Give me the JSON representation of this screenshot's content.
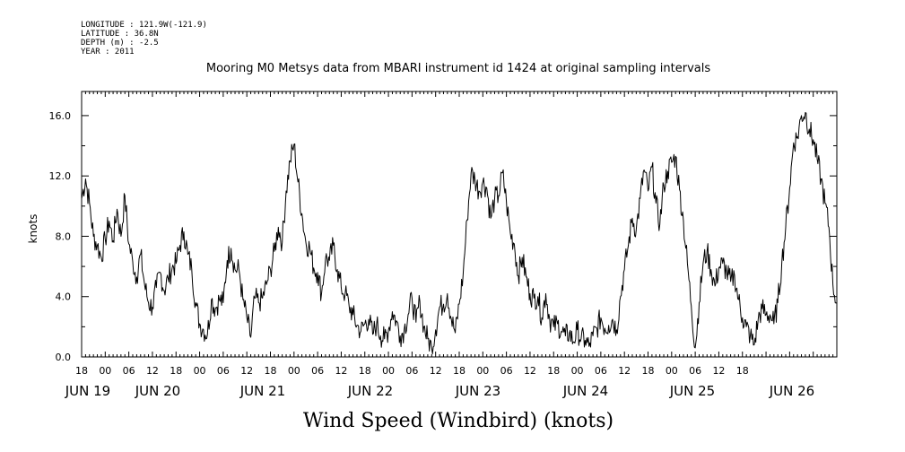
{
  "header": {
    "meta_lines": [
      "LONGITUDE : 121.9W(-121.9)",
      "LATITUDE : 36.8N",
      "DEPTH (m) : -2.5",
      "YEAR : 2011"
    ],
    "title": "Mooring M0 Metsys data from MBARI instrument id 1424 at original sampling intervals"
  },
  "chart_data": {
    "type": "line",
    "ylabel": "knots",
    "xlabel": "Wind Speed (Windbird) (knots)",
    "ylim": [
      0,
      17.6
    ],
    "yticks": [
      "0.0",
      "4.0",
      "8.0",
      "12.0",
      "16.0"
    ],
    "ytick_values": [
      0,
      4,
      8,
      12,
      16
    ],
    "xlim_hours": [
      18,
      210
    ],
    "hour_ticks": [
      "18",
      "00",
      "06",
      "12",
      "18",
      "00",
      "06",
      "12",
      "18",
      "00",
      "06",
      "12",
      "18",
      "00",
      "06",
      "12",
      "18",
      "00",
      "06",
      "12",
      "18",
      "00",
      "06",
      "12",
      "18",
      "00",
      "06",
      "12",
      "18"
    ],
    "day_labels": [
      "JUN 19",
      "JUN 20",
      "JUN 21",
      "JUN 22",
      "JUN 23",
      "JUN 24",
      "JUN 25",
      "JUN 26"
    ],
    "series": [
      {
        "values": [
          [
            18,
            10.5
          ],
          [
            19,
            11.8
          ],
          [
            20,
            10.2
          ],
          [
            21,
            8
          ],
          [
            22,
            7.4
          ],
          [
            23,
            6.6
          ],
          [
            24,
            7.8
          ],
          [
            25,
            9
          ],
          [
            26,
            7.7
          ],
          [
            27,
            9.8
          ],
          [
            28,
            8
          ],
          [
            29,
            10.7
          ],
          [
            30,
            7.5
          ],
          [
            31,
            6.3
          ],
          [
            32,
            5.3
          ],
          [
            33,
            6.8
          ],
          [
            34,
            4.8
          ],
          [
            35,
            3.6
          ],
          [
            36,
            3.3
          ],
          [
            37,
            4.6
          ],
          [
            38,
            5.6
          ],
          [
            39,
            4.4
          ],
          [
            40,
            5.2
          ],
          [
            41,
            5.9
          ],
          [
            42,
            6.2
          ],
          [
            43,
            7.4
          ],
          [
            44,
            8.3
          ],
          [
            45,
            6.8
          ],
          [
            46,
            5.8
          ],
          [
            47,
            3.6
          ],
          [
            48,
            2.2
          ],
          [
            49,
            1.8
          ],
          [
            50,
            1.5
          ],
          [
            51,
            3.8
          ],
          [
            52,
            3.2
          ],
          [
            53,
            3.8
          ],
          [
            54,
            3.6
          ],
          [
            55,
            6.4
          ],
          [
            56,
            7.2
          ],
          [
            57,
            5.8
          ],
          [
            58,
            5.8
          ],
          [
            59,
            3.8
          ],
          [
            60,
            2.6
          ],
          [
            61,
            1.3
          ],
          [
            62,
            3.9
          ],
          [
            63,
            3.6
          ],
          [
            64,
            3.9
          ],
          [
            65,
            4.8
          ],
          [
            66,
            5.8
          ],
          [
            67,
            7
          ],
          [
            68,
            8.6
          ],
          [
            69,
            7.6
          ],
          [
            70,
            11
          ],
          [
            71,
            13
          ],
          [
            72,
            14.1
          ],
          [
            73,
            11.6
          ],
          [
            74,
            9.5
          ],
          [
            75,
            7.6
          ],
          [
            76,
            7.2
          ],
          [
            77,
            5.9
          ],
          [
            78,
            5.6
          ],
          [
            79,
            4.2
          ],
          [
            80,
            6.5
          ],
          [
            81,
            6.4
          ],
          [
            82,
            7.4
          ],
          [
            83,
            5.8
          ],
          [
            84,
            4.6
          ],
          [
            85,
            4.2
          ],
          [
            86,
            3.4
          ],
          [
            87,
            2.8
          ],
          [
            88,
            2.1
          ],
          [
            89,
            1.7
          ],
          [
            90,
            2.2
          ],
          [
            91,
            2.5
          ],
          [
            92,
            1.5
          ],
          [
            93,
            2.2
          ],
          [
            94,
            1.4
          ],
          [
            95,
            1.2
          ],
          [
            96,
            1.8
          ],
          [
            97,
            3
          ],
          [
            98,
            2.4
          ],
          [
            99,
            1.4
          ],
          [
            100,
            1.8
          ],
          [
            101,
            2.8
          ],
          [
            102,
            3.9
          ],
          [
            103,
            2.3
          ],
          [
            104,
            3.7
          ],
          [
            105,
            2
          ],
          [
            106,
            1.2
          ],
          [
            107,
            0.6
          ],
          [
            108,
            1.8
          ],
          [
            109,
            3.3
          ],
          [
            110,
            3.5
          ],
          [
            111,
            4.2
          ],
          [
            112,
            2.5
          ],
          [
            113,
            1.6
          ],
          [
            114,
            3.5
          ],
          [
            115,
            5.5
          ],
          [
            116,
            9.1
          ],
          [
            117,
            12.2
          ],
          [
            118,
            11.8
          ],
          [
            119,
            11
          ],
          [
            120,
            11.6
          ],
          [
            121,
            11.2
          ],
          [
            122,
            9.2
          ],
          [
            123,
            10.5
          ],
          [
            124,
            10.7
          ],
          [
            125,
            12.2
          ],
          [
            126,
            10.3
          ],
          [
            127,
            8.2
          ],
          [
            128,
            7.5
          ],
          [
            129,
            5.4
          ],
          [
            130,
            6.6
          ],
          [
            131,
            5.3
          ],
          [
            132,
            4.2
          ],
          [
            133,
            3.9
          ],
          [
            134,
            4
          ],
          [
            135,
            2.6
          ],
          [
            136,
            4.2
          ],
          [
            137,
            2.5
          ],
          [
            138,
            2
          ],
          [
            139,
            2.2
          ],
          [
            140,
            1.7
          ],
          [
            141,
            1.4
          ],
          [
            142,
            1.6
          ],
          [
            143,
            1
          ],
          [
            144,
            1.8
          ],
          [
            145,
            1.2
          ],
          [
            146,
            1.1
          ],
          [
            147,
            0.7
          ],
          [
            148,
            1.4
          ],
          [
            149,
            1.9
          ],
          [
            150,
            2.6
          ],
          [
            151,
            1.9
          ],
          [
            152,
            2.1
          ],
          [
            153,
            2.5
          ],
          [
            154,
            1.8
          ],
          [
            155,
            4
          ],
          [
            156,
            5.8
          ],
          [
            157,
            7.4
          ],
          [
            158,
            9.2
          ],
          [
            159,
            8.4
          ],
          [
            160,
            10.5
          ],
          [
            161,
            12.4
          ],
          [
            162,
            11
          ],
          [
            163,
            12.6
          ],
          [
            164,
            10.2
          ],
          [
            165,
            8.8
          ],
          [
            166,
            11.4
          ],
          [
            167,
            12.3
          ],
          [
            168,
            12.9
          ],
          [
            169,
            13.3
          ],
          [
            170,
            11.1
          ],
          [
            171,
            9
          ],
          [
            172,
            6.2
          ],
          [
            173,
            3.4
          ],
          [
            174,
            0.6
          ],
          [
            175,
            3.6
          ],
          [
            176,
            6.2
          ],
          [
            177,
            7
          ],
          [
            178,
            5.8
          ],
          [
            179,
            4.7
          ],
          [
            180,
            5.9
          ],
          [
            181,
            6.2
          ],
          [
            182,
            5.6
          ],
          [
            183,
            5
          ],
          [
            184,
            5.4
          ],
          [
            185,
            3.8
          ],
          [
            186,
            2.6
          ],
          [
            187,
            2
          ],
          [
            188,
            1.4
          ],
          [
            189,
            0.8
          ],
          [
            190,
            2.5
          ],
          [
            191,
            3.2
          ],
          [
            192,
            2.8
          ],
          [
            193,
            2.8
          ],
          [
            194,
            2.2
          ],
          [
            195,
            3.6
          ],
          [
            196,
            6.2
          ],
          [
            197,
            8.6
          ],
          [
            198,
            11.2
          ],
          [
            199,
            14.2
          ],
          [
            200,
            14.6
          ],
          [
            201,
            16
          ],
          [
            202,
            16.2
          ],
          [
            203,
            15.1
          ],
          [
            204,
            14.4
          ],
          [
            205,
            13.1
          ],
          [
            206,
            11.8
          ]
        ],
        "values_extra": [
          [
            207,
            10.2
          ],
          [
            208,
            8.6
          ],
          [
            209,
            4.8
          ],
          [
            210,
            3.6
          ]
        ]
      }
    ]
  }
}
